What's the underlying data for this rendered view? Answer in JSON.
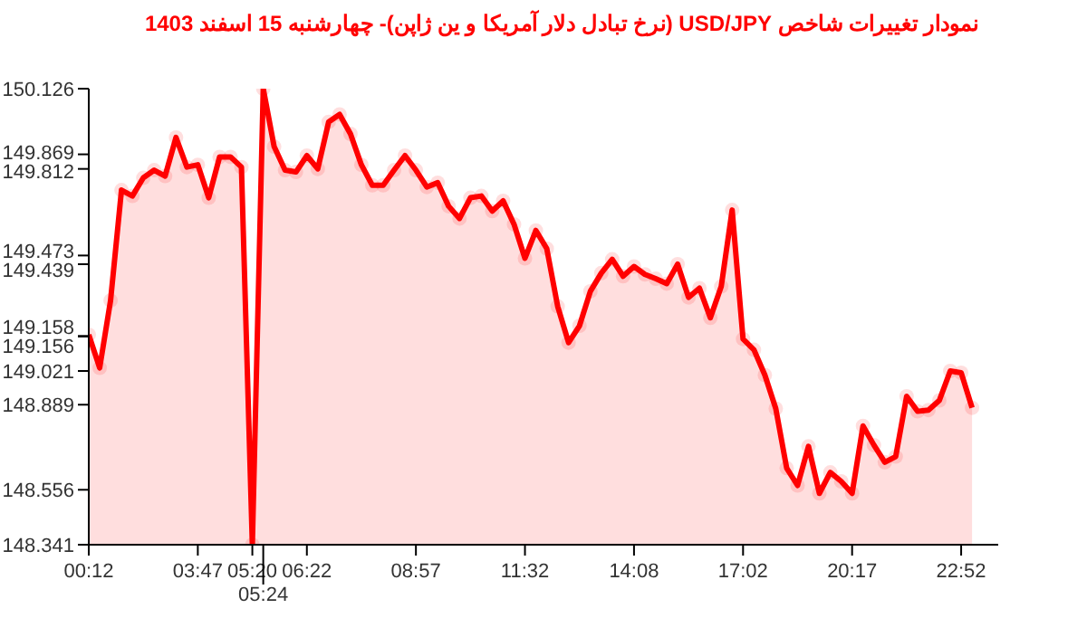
{
  "chart_data": {
    "type": "area",
    "title": "نمودار تغییرات شاخص USD/JPY (نرخ تبادل دلار آمریکا و ین ژاپن)- چهارشنبه  15 اسفند 1403",
    "categories": [
      "00:12",
      null,
      null,
      null,
      null,
      null,
      null,
      null,
      null,
      null,
      "03:47",
      null,
      null,
      null,
      null,
      "05:20",
      "05:24",
      null,
      null,
      null,
      "06:22",
      null,
      null,
      null,
      null,
      null,
      null,
      null,
      null,
      null,
      "08:57",
      null,
      null,
      null,
      null,
      null,
      null,
      null,
      null,
      null,
      "11:32",
      null,
      null,
      null,
      null,
      null,
      null,
      null,
      null,
      null,
      "14:08",
      null,
      null,
      null,
      null,
      null,
      null,
      null,
      null,
      null,
      "17:02",
      null,
      null,
      null,
      null,
      null,
      null,
      null,
      null,
      null,
      "20:17",
      null,
      null,
      null,
      null,
      null,
      null,
      null,
      null,
      null,
      "22:52",
      null
    ],
    "series": [
      {
        "color": "#ff0000",
        "values": [
          149.163,
          149.033,
          149.297,
          149.729,
          149.706,
          149.777,
          149.807,
          149.784,
          149.935,
          149.819,
          149.828,
          149.699,
          149.859,
          149.859,
          149.819,
          148.341,
          150.126,
          149.899,
          149.807,
          149.8,
          149.864,
          149.812,
          149.996,
          150.025,
          149.949,
          149.828,
          149.748,
          149.748,
          149.807,
          149.864,
          149.807,
          149.741,
          149.758,
          149.666,
          149.618,
          149.699,
          149.706,
          149.647,
          149.687,
          149.595,
          149.462,
          149.571,
          149.5,
          149.274,
          149.132,
          149.198,
          149.333,
          149.404,
          149.458,
          149.392,
          149.43,
          149.399,
          149.382,
          149.363,
          149.439,
          149.309,
          149.345,
          149.229,
          149.352,
          149.651,
          149.146,
          149.104,
          149.005,
          148.874,
          148.641,
          148.573,
          148.726,
          148.542,
          148.624,
          148.589,
          148.542,
          148.806,
          148.731,
          148.664,
          148.686,
          148.922,
          148.863,
          148.868,
          148.906,
          149.021,
          149.014,
          148.877
        ]
      }
    ],
    "ylim": [
      148.341,
      150.126
    ],
    "yticks": [
      150.126,
      149.869,
      149.812,
      149.473,
      149.439,
      149.158,
      149.156,
      149.021,
      148.889,
      148.556,
      148.341
    ],
    "marker": "circle"
  }
}
